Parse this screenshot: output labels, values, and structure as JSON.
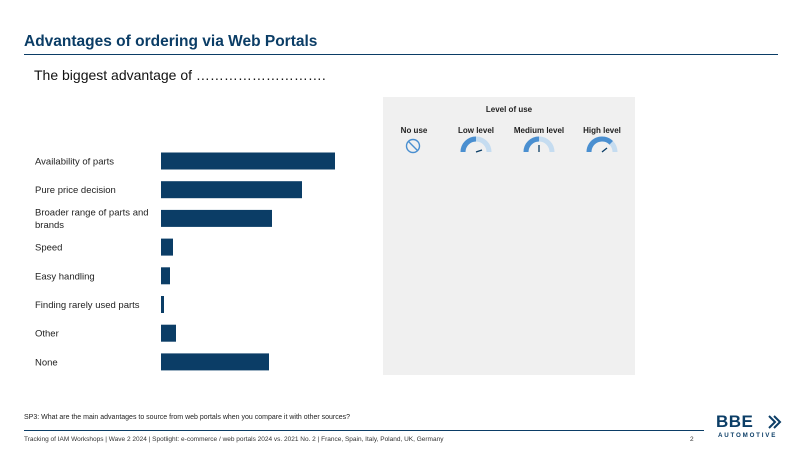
{
  "header": {
    "title": "Advantages of ordering via Web Portals",
    "subtitle": "The biggest advantage of ………………………."
  },
  "legend_panel": {
    "title": "Level of use",
    "levels": [
      {
        "label": "No use",
        "icon": "no-use-icon",
        "level": 0
      },
      {
        "label": "Low level",
        "icon": "gauge-low-icon",
        "level": 0.25
      },
      {
        "label": "Medium level",
        "icon": "gauge-medium-icon",
        "level": 0.5
      },
      {
        "label": "High level",
        "icon": "gauge-high-icon",
        "level": 0.75
      }
    ]
  },
  "chart_data": {
    "type": "bar",
    "orientation": "horizontal",
    "categories": [
      "Availability of parts",
      "Pure price decision",
      "Broader range of parts and brands",
      "Speed",
      "Easy handling",
      "Finding rarely used parts",
      "Other",
      "None"
    ],
    "values": [
      58,
      47,
      37,
      4,
      3,
      1,
      5,
      36
    ],
    "title": "",
    "xlabel": "",
    "ylabel": "",
    "xlim": [
      0,
      100
    ],
    "grid": false,
    "colors": {
      "bar": "#0b3d66"
    }
  },
  "footer": {
    "question": "SP3: What are the main advantages to source from web portals when you compare it with other sources?",
    "source": "Tracking of IAM Workshops | Wave 2 2024 | Spotlight: e-commerce / web portals 2024 vs. 2021 No. 2 | France, Spain, Italy, Poland, UK, Germany",
    "page_number": "2"
  },
  "logo": {
    "main": "BBE",
    "sub": "AUTOMOTIVE"
  },
  "colors": {
    "brand": "#0b3d66",
    "gauge_fill": "#4a8fd0",
    "gauge_light": "#c5dcf0",
    "panel_bg": "#f0f0f0"
  }
}
